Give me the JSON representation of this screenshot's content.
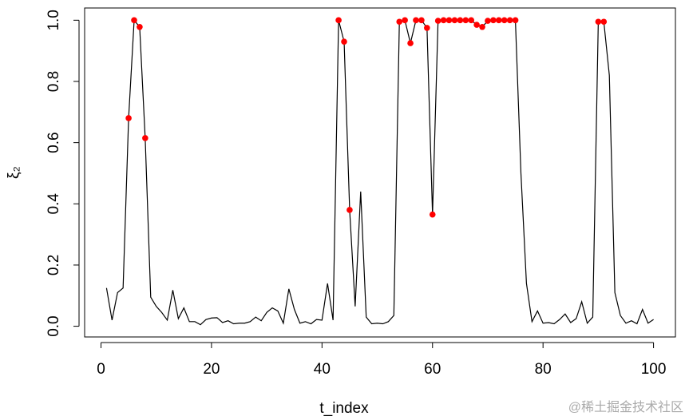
{
  "chart_data": {
    "type": "line",
    "xlabel": "t_index",
    "ylabel": "ξ₂",
    "x": [
      1,
      2,
      3,
      4,
      5,
      6,
      7,
      8,
      9,
      10,
      11,
      12,
      13,
      14,
      15,
      16,
      17,
      18,
      19,
      20,
      21,
      22,
      23,
      24,
      25,
      26,
      27,
      28,
      29,
      30,
      31,
      32,
      33,
      34,
      35,
      36,
      37,
      38,
      39,
      40,
      41,
      42,
      43,
      44,
      45,
      46,
      47,
      48,
      49,
      50,
      51,
      52,
      53,
      54,
      55,
      56,
      57,
      58,
      59,
      60,
      61,
      62,
      63,
      64,
      65,
      66,
      67,
      68,
      69,
      70,
      71,
      72,
      73,
      74,
      75,
      76,
      77,
      78,
      79,
      80,
      81,
      82,
      83,
      84,
      85,
      86,
      87,
      88,
      89,
      90,
      91,
      92,
      93,
      94,
      95,
      96,
      97,
      98,
      99,
      100
    ],
    "line": {
      "color": "#000000",
      "values": [
        0.125,
        0.02,
        0.11,
        0.125,
        0.68,
        1.0,
        0.978,
        0.615,
        0.095,
        0.065,
        0.045,
        0.02,
        0.118,
        0.025,
        0.06,
        0.015,
        0.015,
        0.005,
        0.022,
        0.027,
        0.028,
        0.012,
        0.018,
        0.008,
        0.01,
        0.01,
        0.015,
        0.03,
        0.018,
        0.045,
        0.06,
        0.05,
        0.01,
        0.122,
        0.055,
        0.01,
        0.015,
        0.008,
        0.022,
        0.02,
        0.14,
        0.02,
        1.0,
        0.93,
        0.38,
        0.065,
        0.44,
        0.03,
        0.008,
        0.01,
        0.008,
        0.015,
        0.035,
        0.995,
        1.0,
        0.925,
        1.0,
        1.0,
        0.975,
        0.365,
        0.998,
        1.0,
        1.0,
        1.0,
        1.0,
        1.0,
        1.0,
        0.985,
        0.978,
        0.998,
        1.0,
        1.0,
        1.0,
        1.0,
        1.0,
        0.5,
        0.14,
        0.015,
        0.05,
        0.01,
        0.012,
        0.008,
        0.022,
        0.04,
        0.012,
        0.025,
        0.08,
        0.01,
        0.03,
        0.995,
        0.995,
        0.82,
        0.11,
        0.035,
        0.01,
        0.018,
        0.008,
        0.055,
        0.01,
        0.022
      ]
    },
    "points": {
      "color": "#ff0000",
      "x": [
        5,
        6,
        7,
        8,
        43,
        44,
        45,
        54,
        55,
        56,
        57,
        58,
        59,
        60,
        61,
        62,
        63,
        64,
        65,
        66,
        67,
        68,
        69,
        70,
        71,
        72,
        73,
        74,
        75,
        90,
        91
      ],
      "values": [
        0.68,
        1.0,
        0.978,
        0.615,
        1.0,
        0.93,
        0.38,
        0.995,
        1.0,
        0.925,
        1.0,
        1.0,
        0.975,
        0.365,
        0.998,
        1.0,
        1.0,
        1.0,
        1.0,
        1.0,
        1.0,
        0.985,
        0.978,
        0.998,
        1.0,
        1.0,
        1.0,
        1.0,
        1.0,
        0.995,
        0.995
      ]
    },
    "xlim": [
      -2.96,
      103.96
    ],
    "ylim": [
      -0.035,
      1.04
    ],
    "xticks": [
      0,
      20,
      40,
      60,
      80,
      100
    ],
    "yticks": [
      {
        "value": 0,
        "label": "0.0"
      },
      {
        "value": 0.2,
        "label": "0.2"
      },
      {
        "value": 0.4,
        "label": "0.4"
      },
      {
        "value": 0.6,
        "label": "0.6"
      },
      {
        "value": 0.8,
        "label": "0.8"
      },
      {
        "value": 1,
        "label": "1.0"
      }
    ],
    "watermark": "@稀土掘金技术社区"
  }
}
